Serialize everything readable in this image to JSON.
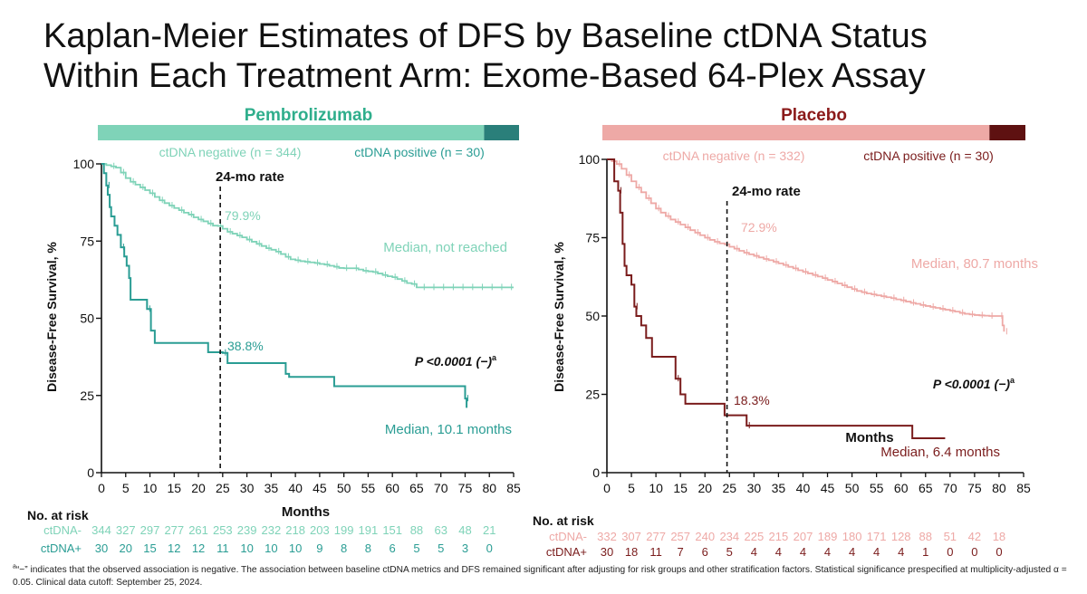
{
  "title": {
    "line1": "Kaplan-Meier Estimates of DFS by Baseline ctDNA Status",
    "line2": "Within Each Treatment Arm: Exome-Based 64-Plex Assay"
  },
  "footnote": {
    "sup": "a",
    "text": "“−” indicates that the observed association is negative. The association between baseline ctDNA metrics and DFS remained significant after adjusting for risk groups and other stratification factors. Statistical significance prespecified at multiplicity-adjusted α = 0.05.  Clinical data cutoff: September 25, 2024."
  },
  "chart_data": [
    {
      "type": "line",
      "title": "Pembrolizumab",
      "xlabel": "Months",
      "ylabel": "Disease-Free Survival, %",
      "xlim": [
        0,
        85
      ],
      "ylim": [
        0,
        100
      ],
      "xticks": [
        0,
        5,
        10,
        15,
        20,
        25,
        30,
        35,
        40,
        45,
        50,
        55,
        60,
        65,
        70,
        75,
        80,
        85
      ],
      "yticks": [
        0,
        25,
        50,
        75,
        100
      ],
      "bar_colors": [
        "#7fd3b8",
        "#2a7f7a"
      ],
      "legend": [
        "ctDNA negative (n = 344)",
        "ctDNA positive (n = 30)"
      ],
      "rate_label": "24-mo rate",
      "rate_x": 24,
      "pvalue": "P <0.0001 (−)",
      "pvalue_sup": "a",
      "series": [
        {
          "name": "ctDNA negative (n = 344)",
          "color": "#7fd3b8",
          "rate_text": "79.9%",
          "median_text": "Median, not reached",
          "x": [
            0,
            1,
            2,
            3,
            4,
            5,
            6,
            7,
            8,
            9,
            10,
            11,
            12,
            13,
            14,
            15,
            16,
            17,
            18,
            19,
            20,
            21,
            22,
            23,
            24,
            25,
            26,
            27,
            28,
            29,
            30,
            31,
            32,
            33,
            34,
            35,
            36,
            37,
            38,
            39,
            40,
            41,
            42,
            43,
            44,
            45,
            46,
            47,
            48,
            49,
            50,
            51,
            52,
            53,
            54,
            55,
            56,
            57,
            58,
            59,
            60,
            61,
            62,
            63,
            64,
            65,
            66,
            67,
            68,
            69,
            70,
            71,
            72,
            73,
            74,
            75,
            76,
            77,
            78,
            79,
            80,
            81,
            82,
            83,
            84,
            85
          ],
          "y": [
            100,
            99.6,
            99.2,
            98.8,
            97.2,
            95.4,
            94.2,
            93.3,
            92.4,
            91.5,
            90.5,
            89.3,
            88.2,
            87.3,
            86.5,
            85.7,
            85.0,
            84.2,
            83.6,
            82.7,
            82.0,
            81.4,
            80.7,
            80.0,
            79.9,
            79.0,
            78.0,
            77.4,
            76.8,
            76.2,
            75.5,
            74.8,
            74.1,
            73.4,
            72.7,
            72.2,
            71.6,
            70.8,
            69.9,
            69.1,
            68.8,
            68.5,
            68.3,
            68.1,
            67.9,
            67.6,
            67.4,
            67.0,
            66.7,
            66.3,
            66.2,
            66.2,
            66.2,
            65.8,
            65.4,
            65.2,
            65.0,
            64.5,
            64.0,
            63.6,
            63.3,
            62.7,
            62.1,
            61.4,
            61.1,
            60.0,
            60.0,
            60.0,
            60.0,
            60.0,
            60.0,
            60.0,
            60.0,
            60.0,
            60.0,
            60.0,
            60.0,
            60.0,
            60.0,
            60.0,
            60.0,
            60.0,
            60.0,
            60.0,
            60.0,
            60.0
          ],
          "at_risk_label": "ctDNA-",
          "at_risk": [
            344,
            327,
            297,
            277,
            261,
            253,
            239,
            232,
            218,
            203,
            199,
            191,
            151,
            88,
            63,
            48,
            21
          ]
        },
        {
          "name": "ctDNA positive (n = 30)",
          "color": "#2a9d94",
          "rate_text": "38.8%",
          "median_text": "Median, 10.1 months",
          "x": [
            0,
            0.5,
            1,
            1.3,
            1.7,
            2,
            2.7,
            3.3,
            4,
            4.7,
            5.2,
            5.7,
            6,
            9,
            9.4,
            10.2,
            11,
            17,
            22,
            24.5,
            25,
            26,
            33,
            38,
            38.7,
            48,
            75,
            75.3
          ],
          "y": [
            100,
            97,
            93,
            90,
            86,
            83,
            80,
            77,
            73,
            70,
            67,
            63,
            56,
            56,
            53,
            46,
            42,
            42,
            39,
            39,
            38.8,
            35.5,
            35.5,
            32,
            31,
            28,
            24,
            21
          ],
          "at_risk_label": "ctDNA+",
          "at_risk": [
            30,
            20,
            15,
            12,
            12,
            11,
            10,
            10,
            10,
            9,
            8,
            8,
            6,
            5,
            5,
            3,
            0
          ]
        }
      ]
    },
    {
      "type": "line",
      "title": "Placebo",
      "xlabel": "Months",
      "ylabel": "Disease-Free Survival, %",
      "xlim": [
        0,
        85
      ],
      "ylim": [
        0,
        100
      ],
      "xticks": [
        0,
        5,
        10,
        15,
        20,
        25,
        30,
        35,
        40,
        45,
        50,
        55,
        60,
        65,
        70,
        75,
        80,
        85
      ],
      "yticks": [
        0,
        25,
        50,
        75,
        100
      ],
      "bar_colors": [
        "#eea9a6",
        "#5e1111"
      ],
      "legend": [
        "ctDNA negative (n = 332)",
        "ctDNA positive (n = 30)"
      ],
      "rate_label": "24-mo rate",
      "rate_x": 24,
      "pvalue": "P <0.0001 (−)",
      "pvalue_sup": "a",
      "series": [
        {
          "name": "ctDNA negative (n = 332)",
          "color": "#eea9a6",
          "rate_text": "72.9%",
          "median_text": "Median, 80.7 months",
          "x": [
            0,
            1,
            2,
            3,
            4,
            5,
            6,
            7,
            8,
            9,
            10,
            11,
            12,
            13,
            14,
            15,
            16,
            17,
            18,
            19,
            20,
            21,
            22,
            23,
            24,
            25,
            26,
            27,
            28,
            29,
            30,
            31,
            32,
            33,
            34,
            35,
            36,
            37,
            38,
            39,
            40,
            41,
            42,
            43,
            44,
            45,
            46,
            47,
            48,
            49,
            50,
            51,
            52,
            53,
            54,
            55,
            56,
            57,
            58,
            59,
            60,
            61,
            62,
            63,
            64,
            65,
            66,
            67,
            68,
            69,
            70,
            71,
            72,
            73,
            74,
            75,
            76,
            77,
            78,
            79,
            80,
            80.7,
            81
          ],
          "y": [
            100,
            99.4,
            98.5,
            97.0,
            95.0,
            93.0,
            91.0,
            89.5,
            87.6,
            86.0,
            84.3,
            83.0,
            81.9,
            80.8,
            80.0,
            79.2,
            78.3,
            77.4,
            76.6,
            75.8,
            75.0,
            74.3,
            73.7,
            73.2,
            72.9,
            72.1,
            71.5,
            70.8,
            70.2,
            69.7,
            69.2,
            68.7,
            68.2,
            67.8,
            67.3,
            66.8,
            66.3,
            65.7,
            65.2,
            64.6,
            64.1,
            63.6,
            63.1,
            62.6,
            62.1,
            61.5,
            61.0,
            60.4,
            59.8,
            59.2,
            58.6,
            58.0,
            57.6,
            57.2,
            56.9,
            56.6,
            56.3,
            56.0,
            55.7,
            55.3,
            55.0,
            54.6,
            54.2,
            53.9,
            53.5,
            53.2,
            52.9,
            52.6,
            52.3,
            52.0,
            51.7,
            51.4,
            51.0,
            50.7,
            50.5,
            50.3,
            50.2,
            50.1,
            50.0,
            50.0,
            50.0,
            47.0,
            45.0
          ],
          "at_risk_label": "ctDNA-",
          "at_risk": [
            332,
            307,
            277,
            257,
            240,
            234,
            225,
            215,
            207,
            189,
            180,
            171,
            128,
            88,
            51,
            42,
            18
          ]
        },
        {
          "name": "ctDNA positive (n = 30)",
          "color": "#7a1c1c",
          "rate_text": "18.3%",
          "median_text": "Median, 6.4 months",
          "x": [
            0,
            1.5,
            2.3,
            2.7,
            3.2,
            3.6,
            4,
            5,
            5.6,
            6,
            7,
            8,
            9.2,
            13,
            14,
            15,
            16,
            21,
            24,
            28,
            28.5,
            61,
            62.3,
            69
          ],
          "y": [
            100,
            93,
            90,
            83,
            73,
            66,
            63,
            60,
            53,
            50,
            47,
            43,
            37,
            37,
            30,
            25,
            22,
            22,
            18.3,
            18.3,
            15,
            15,
            11,
            11
          ],
          "at_risk_label": "ctDNA+",
          "at_risk": [
            30,
            18,
            11,
            7,
            6,
            5,
            4,
            4,
            4,
            4,
            4,
            4,
            4,
            1,
            0,
            0,
            0
          ]
        }
      ]
    }
  ],
  "at_risk_title": "No. at risk"
}
